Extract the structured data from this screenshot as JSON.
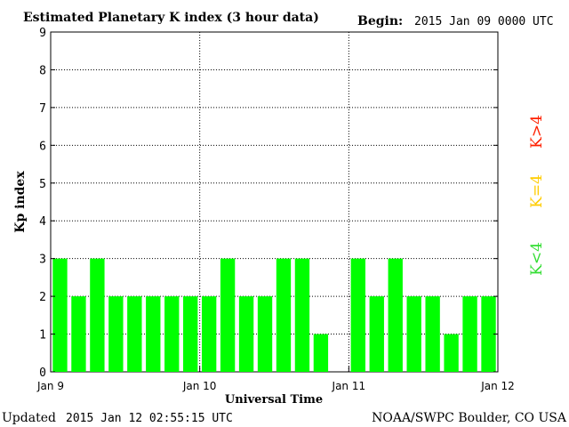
{
  "header": {
    "title": "Estimated Planetary K index (3 hour data)",
    "begin_label": "Begin:",
    "begin_value": "2015 Jan 09 0000 UTC"
  },
  "footer": {
    "updated_label": "Updated",
    "updated_value": "2015 Jan 12 02:55:15 UTC",
    "source": "NOAA/SWPC Boulder, CO USA"
  },
  "legend": {
    "high": {
      "label": "K>4",
      "color": "#ff2000"
    },
    "equal": {
      "label": "K=4",
      "color": "#ffcc00"
    },
    "low": {
      "label": "K<4",
      "color": "#33dd33"
    }
  },
  "chart_data": {
    "type": "bar",
    "title": "Estimated Planetary K index (3 hour data)",
    "xlabel": "Universal Time",
    "ylabel": "Kp index",
    "ylim": [
      0,
      9
    ],
    "yticks": [
      0,
      1,
      2,
      3,
      4,
      5,
      6,
      7,
      8,
      9
    ],
    "xticks": [
      "Jan 9",
      "Jan 10",
      "Jan 11",
      "Jan 12"
    ],
    "grid": true,
    "bar_color": "#00ff00",
    "slots_total": 24,
    "values": [
      3,
      2,
      3,
      2,
      2,
      2,
      2,
      2,
      2,
      3,
      2,
      2,
      3,
      3,
      1,
      null,
      3,
      2,
      3,
      2,
      2,
      1,
      2,
      2
    ]
  }
}
